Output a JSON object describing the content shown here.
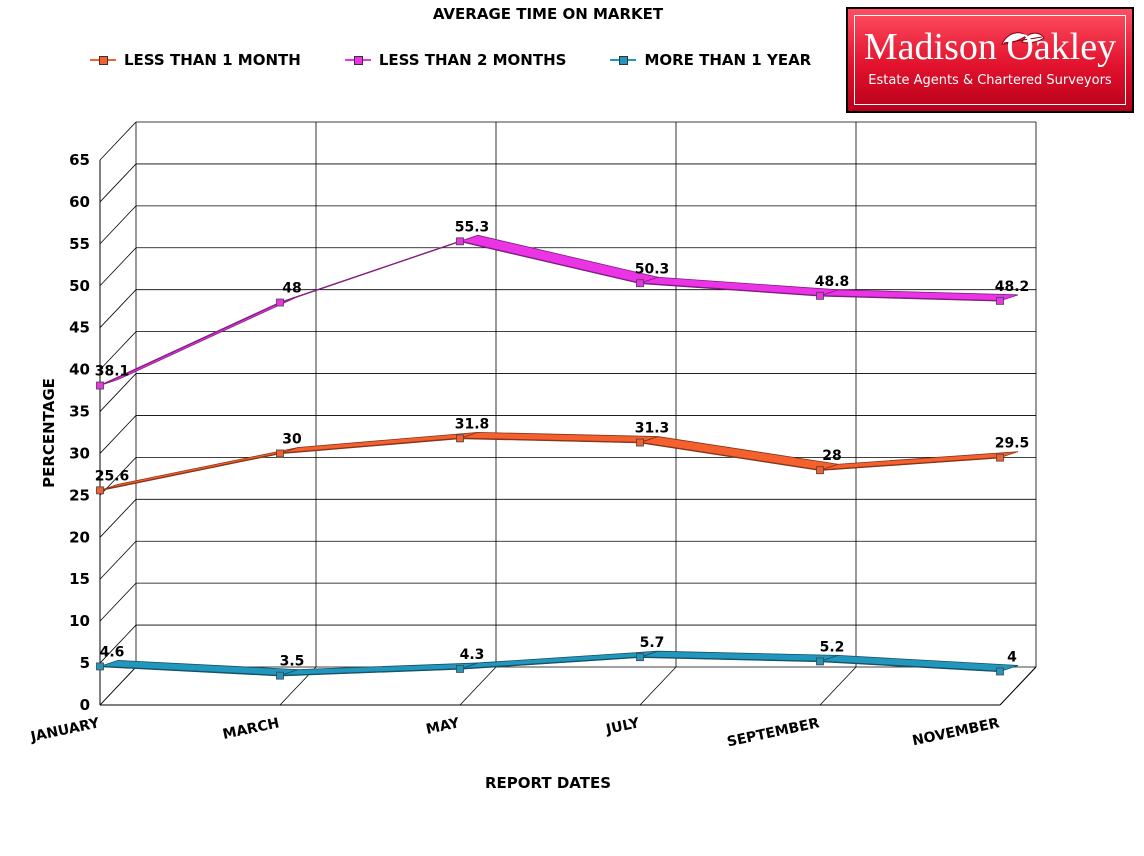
{
  "logo": {
    "name": "Madison Oakley",
    "tagline": "Estate Agents & Chartered Surveyors"
  },
  "colors": {
    "less_than_1_month": "#f4602e",
    "less_than_2_months": "#ea34e6",
    "more_than_1_year": "#2296bc",
    "logo_red": "#e2122d"
  },
  "chart_data": {
    "type": "line",
    "title": "AVERAGE TIME ON MARKET",
    "xlabel": "REPORT DATES",
    "ylabel": "PERCENTAGE",
    "ylim": [
      0,
      65
    ],
    "yticks": [
      0,
      5,
      10,
      15,
      20,
      25,
      30,
      35,
      40,
      45,
      50,
      55,
      60,
      65
    ],
    "categories": [
      "JANUARY",
      "MARCH",
      "MAY",
      "JULY",
      "SEPTEMBER",
      "NOVEMBER"
    ],
    "grid": true,
    "legend_position": "top",
    "style": "3d",
    "series": [
      {
        "name": "LESS THAN 1 MONTH",
        "values": [
          25.6,
          30,
          31.8,
          31.3,
          28,
          29.5
        ],
        "color": "#f4602e",
        "labels": [
          "25.6",
          "30",
          "31.8",
          "31.3",
          "28",
          "29.5"
        ]
      },
      {
        "name": "LESS THAN 2 MONTHS",
        "values": [
          38.1,
          48,
          55.3,
          50.3,
          48.8,
          48.2
        ],
        "color": "#ea34e6",
        "labels": [
          "38.1",
          "48",
          "55.3",
          "50.3",
          "48.8",
          "48.2"
        ]
      },
      {
        "name": "MORE THAN 1 YEAR",
        "values": [
          4.6,
          3.5,
          4.3,
          5.7,
          5.2,
          4
        ],
        "color": "#2296bc",
        "labels": [
          "4.6",
          "3.5",
          "4.3",
          "5.7",
          "5.2",
          "4"
        ]
      }
    ]
  }
}
